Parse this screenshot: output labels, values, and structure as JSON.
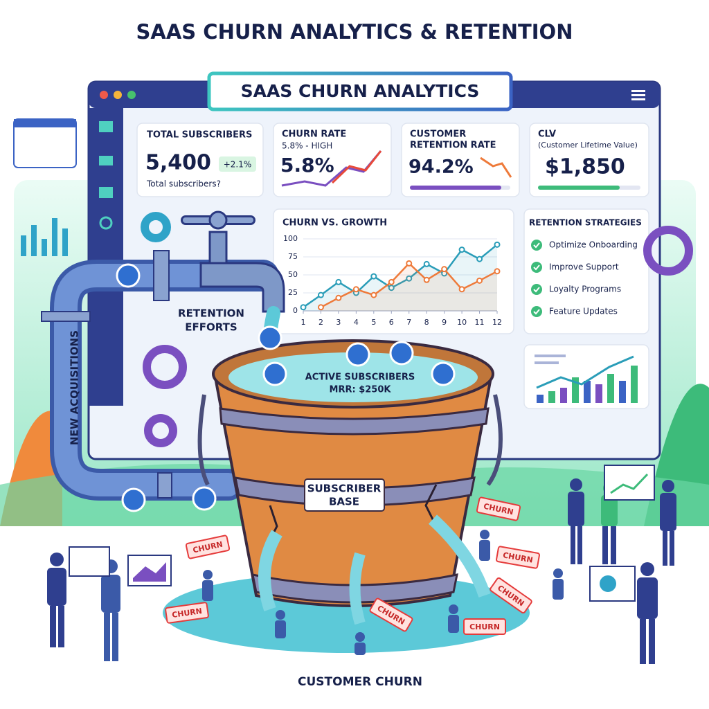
{
  "title": "SAAS CHURN ANALYTICS & RETENTION",
  "dashboard": {
    "title": "SAAS CHURN ANALYTICS"
  },
  "kpis": [
    {
      "label": "TOTAL SUBSCRIBERS",
      "value": "5,400",
      "badge": "+2.1%",
      "note": "Total subscribers?"
    },
    {
      "label": "CHURN RATE",
      "sublabel": "5.8% - HIGH",
      "value": "5.8%"
    },
    {
      "label": [
        "CUSTOMER",
        "RETENTION RATE"
      ],
      "value": "94.2%"
    },
    {
      "label": "CLV",
      "sublabel": "(Customer Lifetime Value)",
      "value": "$1,850"
    }
  ],
  "chart_data": {
    "type": "line",
    "title": "CHURN VS. GROWTH",
    "x": [
      1,
      2,
      3,
      4,
      5,
      6,
      7,
      8,
      9,
      10,
      11,
      12
    ],
    "xlim": [
      1,
      12
    ],
    "ylim": [
      0,
      100
    ],
    "yticks": [
      0,
      25,
      50,
      75,
      100
    ],
    "grid": true,
    "series": [
      {
        "color": "#2a9db8",
        "values": [
          5,
          22,
          40,
          25,
          48,
          32,
          45,
          65,
          52,
          85,
          72,
          92
        ]
      },
      {
        "color": "#ee7a3a",
        "values": [
          null,
          5,
          18,
          30,
          22,
          40,
          66,
          43,
          58,
          30,
          42,
          55
        ]
      }
    ]
  },
  "strategies": {
    "title": "RETENTION STRATEGIES",
    "items": [
      "Optimize Onboarding",
      "Improve Support",
      "Loyalty Programs",
      "Feature Updates"
    ]
  },
  "labels": {
    "retention": [
      "RETENTION",
      "EFFORTS"
    ],
    "acquisitions": "NEW ACQUISITIONS",
    "bucket_top": [
      "ACTIVE SUBSCRIBERS",
      "MRR: $250K"
    ],
    "bucket": [
      "SUBSCRIBER",
      "BASE"
    ],
    "churn_tags": [
      "CHURN",
      "CHURN",
      "CHURN",
      "CHURN",
      "CHURN",
      "CHURN",
      "CHURN"
    ]
  },
  "footer": "CUSTOMER CHURN"
}
